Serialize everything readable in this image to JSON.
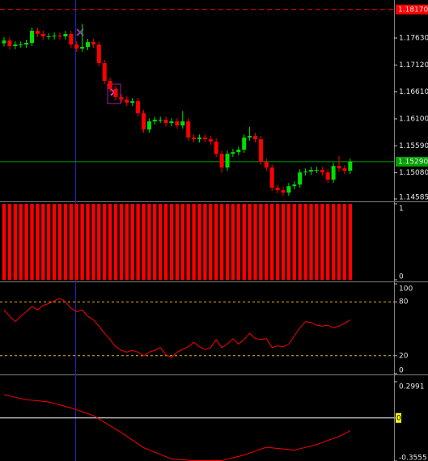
{
  "chart_data": [
    {
      "type": "candlestick",
      "up_color": "#00e000",
      "down_color": "#ff0000",
      "open": [
        1.1753,
        1.17584,
        1.17477,
        1.17507,
        1.17507,
        1.17538,
        1.17768,
        1.17707,
        1.17661,
        1.17661,
        1.17676,
        1.17661,
        1.17707,
        1.17507,
        1.17431,
        1.17461,
        1.17553,
        1.17507,
        1.17155,
        1.16818,
        1.16665,
        1.16512,
        1.16466,
        1.16404,
        1.16435,
        1.16205,
        1.15899,
        1.16052,
        1.16083,
        1.16083,
        1.16021,
        1.16052,
        1.15975,
        1.16052,
        1.15746,
        1.15715,
        1.15746,
        1.15715,
        1.15669,
        1.15439,
        1.15179,
        1.15439,
        1.1547,
        1.15516,
        1.15746,
        1.15776,
        1.15715,
        1.15286,
        1.15179,
        1.14796,
        1.1475,
        1.14704,
        1.14826,
        1.14857,
        1.15087,
        1.15102,
        1.15133,
        1.15133,
        1.15087,
        1.14949,
        1.15209,
        1.15164,
        1.15118
      ],
      "high": [
        1.17644,
        1.17644,
        1.17567,
        1.17567,
        1.17598,
        1.17828,
        1.17828,
        1.17767,
        1.17721,
        1.17736,
        1.17736,
        1.17767,
        1.17767,
        1.17567,
        1.179,
        1.17613,
        1.17613,
        1.17567,
        1.17215,
        1.16878,
        1.16725,
        1.16572,
        1.16526,
        1.16495,
        1.16495,
        1.16265,
        1.16112,
        1.16143,
        1.16143,
        1.16143,
        1.16112,
        1.16112,
        1.1625,
        1.16112,
        1.15806,
        1.15806,
        1.15806,
        1.15775,
        1.15729,
        1.15499,
        1.15499,
        1.1553,
        1.15576,
        1.15806,
        1.1595,
        1.15836,
        1.15775,
        1.15346,
        1.15239,
        1.14856,
        1.1481,
        1.14886,
        1.14917,
        1.15147,
        1.15162,
        1.15193,
        1.15193,
        1.15193,
        1.15147,
        1.15269,
        1.154,
        1.15224,
        1.1535
      ],
      "low": [
        1.1747,
        1.17417,
        1.17417,
        1.17447,
        1.17447,
        1.17478,
        1.17647,
        1.17601,
        1.17601,
        1.17601,
        1.17601,
        1.17601,
        1.17447,
        1.17371,
        1.17371,
        1.17401,
        1.17447,
        1.17095,
        1.16758,
        1.16605,
        1.16452,
        1.16406,
        1.16344,
        1.16344,
        1.16145,
        1.15839,
        1.15839,
        1.15992,
        1.16023,
        1.15961,
        1.15961,
        1.15915,
        1.15915,
        1.15686,
        1.15655,
        1.15655,
        1.15655,
        1.15609,
        1.15379,
        1.1508,
        1.15119,
        1.15379,
        1.1541,
        1.15456,
        1.15686,
        1.15655,
        1.15226,
        1.15119,
        1.14736,
        1.1469,
        1.14644,
        1.14644,
        1.14766,
        1.14797,
        1.15027,
        1.15042,
        1.15073,
        1.15027,
        1.14889,
        1.14889,
        1.15104,
        1.15058,
        1.15058
      ],
      "close": [
        1.17584,
        1.17477,
        1.17507,
        1.17507,
        1.17538,
        1.17768,
        1.17707,
        1.17661,
        1.17661,
        1.17676,
        1.17661,
        1.17707,
        1.17507,
        1.17431,
        1.17461,
        1.17553,
        1.17507,
        1.17155,
        1.16818,
        1.16665,
        1.16512,
        1.16466,
        1.16404,
        1.16435,
        1.16205,
        1.15899,
        1.16052,
        1.16083,
        1.16083,
        1.16021,
        1.16052,
        1.15975,
        1.16052,
        1.15746,
        1.15715,
        1.15746,
        1.15715,
        1.15669,
        1.15439,
        1.15179,
        1.15439,
        1.1547,
        1.15516,
        1.15746,
        1.15776,
        1.15715,
        1.15286,
        1.15179,
        1.14796,
        1.1475,
        1.14704,
        1.14826,
        1.14857,
        1.15087,
        1.15102,
        1.15133,
        1.15133,
        1.15087,
        1.14949,
        1.15209,
        1.15164,
        1.15118,
        1.1529
      ],
      "ylim": [
        1.14554,
        1.1835
      ],
      "yticks": [
        {
          "value": 1.1763,
          "label": "1.17630"
        },
        {
          "value": 1.1712,
          "label": "1.17120"
        },
        {
          "value": 1.1661,
          "label": "1.16610"
        },
        {
          "value": 1.161,
          "label": "1.16100"
        },
        {
          "value": 1.1559,
          "label": "1.15590"
        },
        {
          "value": 1.1508,
          "label": "1.15080"
        },
        1.14585
      ],
      "lines": [
        {
          "value": 1.1817,
          "label": "1.18170",
          "color": "#ff0000",
          "style": "dashed"
        },
        {
          "value": 1.1529,
          "label": "1.15290",
          "color": "#00a000",
          "style": "solid"
        }
      ]
    },
    {
      "type": "bar",
      "color": "#ff0000",
      "values": [
        1,
        1,
        1,
        1,
        1,
        1,
        1,
        1,
        1,
        1,
        1,
        1,
        1,
        1,
        1,
        1,
        1,
        1,
        1,
        1,
        1,
        1,
        1,
        1,
        1,
        1,
        1,
        1,
        1,
        1,
        1,
        1,
        1,
        1,
        1,
        1,
        1,
        1,
        1,
        1,
        1,
        1,
        1,
        1,
        1,
        1,
        1,
        1,
        1,
        1,
        1,
        1,
        1,
        1,
        1,
        1,
        1,
        1,
        1,
        1,
        1,
        1,
        1
      ],
      "ylim": [
        0,
        1
      ],
      "yticks": [
        0,
        1
      ]
    },
    {
      "type": "line",
      "series": [
        {
          "color": "#ff0000",
          "values": [
            71,
            64,
            58,
            64,
            69,
            75,
            71,
            76,
            78,
            81,
            84,
            80,
            73,
            69,
            71,
            64,
            60,
            53,
            45,
            38,
            30,
            26,
            24,
            26,
            24,
            20,
            24,
            26,
            29,
            21,
            18,
            24,
            27,
            30,
            35,
            30,
            27,
            29,
            38,
            29,
            33,
            39,
            33,
            38,
            45,
            39,
            38,
            39,
            29,
            31,
            30,
            33,
            42,
            51,
            58,
            57,
            54,
            53,
            54,
            51,
            53,
            56,
            60
          ]
        }
      ],
      "ylim": [
        0,
        100
      ],
      "yticks": [
        0,
        20,
        80,
        100
      ],
      "levels": [
        20,
        80
      ],
      "level_color": "#e0c000",
      "level_style": "dashed"
    },
    {
      "type": "line",
      "series": [
        {
          "color": "#ff0000",
          "values": [
            0.193,
            0.182,
            0.171,
            0.161,
            0.15,
            0.146,
            0.142,
            0.137,
            0.133,
            0.12,
            0.108,
            0.095,
            0.083,
            0.067,
            0.052,
            0.036,
            0.02,
            -0.008,
            -0.036,
            -0.064,
            -0.092,
            -0.12,
            -0.151,
            -0.183,
            -0.214,
            -0.245,
            -0.264,
            -0.283,
            -0.301,
            -0.32,
            -0.339,
            -0.342,
            -0.346,
            -0.349,
            -0.352,
            -0.352,
            -0.352,
            -0.352,
            -0.352,
            -0.352,
            -0.341,
            -0.329,
            -0.318,
            -0.306,
            -0.29,
            -0.274,
            -0.258,
            -0.242,
            -0.247,
            -0.252,
            -0.256,
            -0.261,
            -0.266,
            -0.254,
            -0.243,
            -0.231,
            -0.219,
            -0.203,
            -0.186,
            -0.17,
            -0.153,
            -0.13,
            -0.106
          ]
        }
      ],
      "ylim": [
        -0.3555,
        0.2991
      ],
      "yticks": [
        0.2991,
        {
          "value": 0,
          "label": "0.00"
        },
        -0.3555
      ],
      "levels": [
        0
      ],
      "level_color": "#ffffff",
      "level_style": "solid",
      "highlight_levels": "#ffff00"
    }
  ]
}
